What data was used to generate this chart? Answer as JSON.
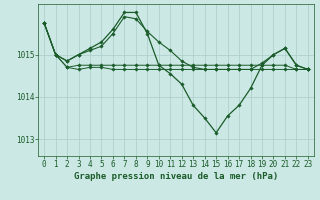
{
  "background_color": "#cce8e4",
  "grid_color": "#aaccca",
  "line_color": "#1a5c2a",
  "xlabel": "Graphe pression niveau de la mer (hPa)",
  "xlabel_fontsize": 6.5,
  "ylabel_ticks": [
    1013,
    1014,
    1015
  ],
  "xlim": [
    -0.5,
    23.5
  ],
  "ylim": [
    1012.6,
    1016.2
  ],
  "series": [
    [
      1015.75,
      1015.0,
      1014.7,
      1014.75,
      1014.75,
      1014.75,
      1014.75,
      1014.75,
      1014.75,
      1014.75,
      1014.75,
      1014.75,
      1014.75,
      1014.75,
      1014.75,
      1014.75,
      1014.75,
      1014.75,
      1014.75,
      1014.75,
      1014.75,
      1014.75,
      1014.65,
      1014.65
    ],
    [
      1015.75,
      1015.0,
      1014.7,
      1014.65,
      1014.7,
      1014.7,
      1014.65,
      1014.65,
      1014.65,
      1014.65,
      1014.65,
      1014.65,
      1014.65,
      1014.65,
      1014.65,
      1014.65,
      1014.65,
      1014.65,
      1014.65,
      1014.65,
      1014.65,
      1014.65,
      1014.65,
      1014.65
    ],
    [
      1015.75,
      1015.0,
      1014.85,
      1015.0,
      1015.1,
      1015.2,
      1015.5,
      1015.9,
      1015.85,
      1015.55,
      1015.3,
      1015.1,
      1014.85,
      1014.7,
      1014.65,
      1014.65,
      1014.65,
      1014.65,
      1014.65,
      1014.8,
      1015.0,
      1015.15,
      1014.75,
      1014.65
    ],
    [
      1015.75,
      1015.0,
      1014.85,
      1015.0,
      1015.15,
      1015.3,
      1015.6,
      1016.0,
      1016.0,
      1015.5,
      1014.75,
      1014.55,
      1014.3,
      1013.8,
      1013.5,
      1013.15,
      1013.55,
      1013.8,
      1014.2,
      1014.75,
      1015.0,
      1015.15,
      1014.75,
      1014.65
    ]
  ],
  "tick_fontsize": 5.5,
  "marker": "D",
  "marker_size": 1.8,
  "linewidths": [
    0.7,
    0.7,
    0.8,
    0.9
  ]
}
